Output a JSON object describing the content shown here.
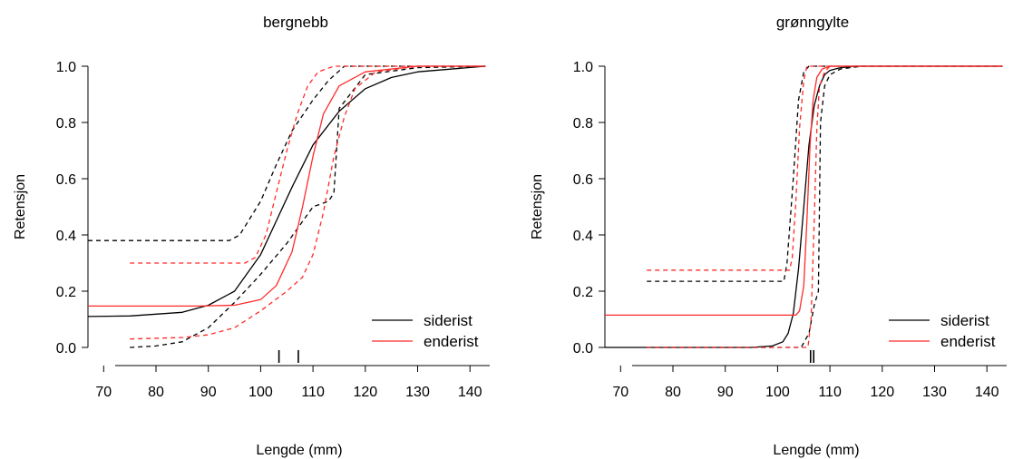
{
  "chart_data": [
    {
      "type": "line",
      "title": "bergnebb",
      "xlabel": "Lengde (mm)",
      "ylabel": "Retensjon",
      "xlim": [
        67,
        143
      ],
      "ylim": [
        0,
        1
      ],
      "x_ticks": [
        70,
        80,
        90,
        100,
        110,
        120,
        130,
        140
      ],
      "y_ticks": [
        "0.0",
        "0.2",
        "0.4",
        "0.6",
        "0.8",
        "1.0"
      ],
      "legend_position": "bottom-right",
      "colors": {
        "siderist": "#000000",
        "enderist": "#ff2a2a"
      },
      "series": [
        {
          "name": "siderist",
          "color": "#000000",
          "dash": false,
          "x": [
            67,
            75,
            85,
            90,
            95,
            100,
            103,
            106,
            110,
            115,
            120,
            125,
            130,
            143
          ],
          "y": [
            0.11,
            0.112,
            0.125,
            0.15,
            0.2,
            0.33,
            0.45,
            0.57,
            0.72,
            0.84,
            0.92,
            0.96,
            0.98,
            1.0
          ]
        },
        {
          "color": "#000000",
          "dash": true,
          "x": [
            67,
            94,
            96,
            100,
            103,
            106,
            110,
            113,
            116,
            120,
            125,
            130,
            143
          ],
          "y": [
            0.38,
            0.38,
            0.4,
            0.52,
            0.65,
            0.77,
            0.88,
            0.95,
            1.0,
            1.0,
            1.0,
            1.0,
            1.0
          ]
        },
        {
          "color": "#000000",
          "dash": true,
          "x": [
            75,
            80,
            85,
            90,
            95,
            100,
            105,
            110,
            113,
            114,
            115,
            120,
            130,
            143
          ],
          "y": [
            0.0,
            0.005,
            0.02,
            0.07,
            0.16,
            0.26,
            0.37,
            0.5,
            0.52,
            0.55,
            0.85,
            0.97,
            0.995,
            1.0
          ]
        },
        {
          "name": "enderist",
          "color": "#ff2a2a",
          "dash": false,
          "x": [
            67,
            88,
            95,
            100,
            103,
            106,
            108,
            110,
            112,
            115,
            120,
            130,
            143
          ],
          "y": [
            0.147,
            0.147,
            0.15,
            0.17,
            0.22,
            0.34,
            0.5,
            0.68,
            0.83,
            0.93,
            0.98,
            1.0,
            1.0
          ]
        },
        {
          "color": "#ff2a2a",
          "dash": true,
          "x": [
            75,
            97,
            99,
            101,
            103,
            105,
            107,
            109,
            111,
            114,
            117,
            120,
            143
          ],
          "y": [
            0.3,
            0.3,
            0.32,
            0.4,
            0.55,
            0.7,
            0.83,
            0.93,
            0.98,
            1.0,
            1.0,
            1.0,
            1.0
          ]
        },
        {
          "color": "#ff2a2a",
          "dash": true,
          "x": [
            75,
            85,
            90,
            95,
            100,
            105,
            108,
            110,
            112,
            114,
            116,
            118,
            122,
            130,
            143
          ],
          "y": [
            0.03,
            0.035,
            0.045,
            0.07,
            0.13,
            0.2,
            0.25,
            0.33,
            0.48,
            0.68,
            0.82,
            0.92,
            0.98,
            1.0,
            1.0
          ]
        }
      ],
      "rug": [
        103.5,
        107.2
      ]
    },
    {
      "type": "line",
      "title": "grønngylte",
      "xlabel": "Lengde (mm)",
      "ylabel": "Retensjon",
      "xlim": [
        67,
        143
      ],
      "ylim": [
        0,
        1
      ],
      "x_ticks": [
        70,
        80,
        90,
        100,
        110,
        120,
        130,
        140
      ],
      "y_ticks": [
        "0.0",
        "0.2",
        "0.4",
        "0.6",
        "0.8",
        "1.0"
      ],
      "legend_position": "bottom-right",
      "colors": {
        "siderist": "#000000",
        "enderist": "#ff2a2a"
      },
      "series": [
        {
          "name": "siderist",
          "color": "#000000",
          "dash": false,
          "x": [
            67,
            95,
            99,
            101,
            102,
            103,
            104,
            105,
            106,
            107,
            108,
            109,
            110,
            112,
            115,
            120,
            143
          ],
          "y": [
            0.0,
            0.0,
            0.005,
            0.02,
            0.05,
            0.12,
            0.28,
            0.5,
            0.72,
            0.86,
            0.93,
            0.97,
            0.985,
            0.995,
            1.0,
            1.0,
            1.0
          ]
        },
        {
          "color": "#000000",
          "dash": true,
          "x": [
            75,
            101.2,
            101.8,
            103,
            104,
            105,
            106,
            107,
            108,
            143
          ],
          "y": [
            0.235,
            0.235,
            0.3,
            0.6,
            0.88,
            0.98,
            1.0,
            1.0,
            1.0,
            1.0
          ]
        },
        {
          "color": "#000000",
          "dash": true,
          "x": [
            75,
            104.5,
            106,
            107,
            107.8,
            108.2,
            109,
            110,
            112,
            116,
            143
          ],
          "y": [
            0.0,
            0.0,
            0.05,
            0.15,
            0.2,
            0.8,
            0.93,
            0.97,
            0.99,
            1.0,
            1.0
          ]
        },
        {
          "name": "enderist",
          "color": "#ff2a2a",
          "dash": false,
          "x": [
            67,
            103.5,
            104.2,
            105,
            105.6,
            106.2,
            106.8,
            107.5,
            108.5,
            110,
            143
          ],
          "y": [
            0.115,
            0.115,
            0.13,
            0.22,
            0.45,
            0.72,
            0.88,
            0.96,
            0.99,
            1.0,
            1.0
          ]
        },
        {
          "color": "#ff2a2a",
          "dash": true,
          "x": [
            75,
            102.3,
            102.8,
            103.5,
            104.2,
            105,
            105.6,
            143
          ],
          "y": [
            0.275,
            0.275,
            0.32,
            0.52,
            0.78,
            0.95,
            1.0,
            1.0
          ]
        },
        {
          "color": "#ff2a2a",
          "dash": true,
          "x": [
            75,
            105.8,
            106.4,
            107,
            107.5,
            108,
            109,
            110,
            143
          ],
          "y": [
            0.0,
            0.0,
            0.1,
            0.45,
            0.78,
            0.93,
            0.98,
            1.0,
            1.0
          ]
        }
      ],
      "rug": [
        106.3,
        106.9
      ]
    }
  ]
}
